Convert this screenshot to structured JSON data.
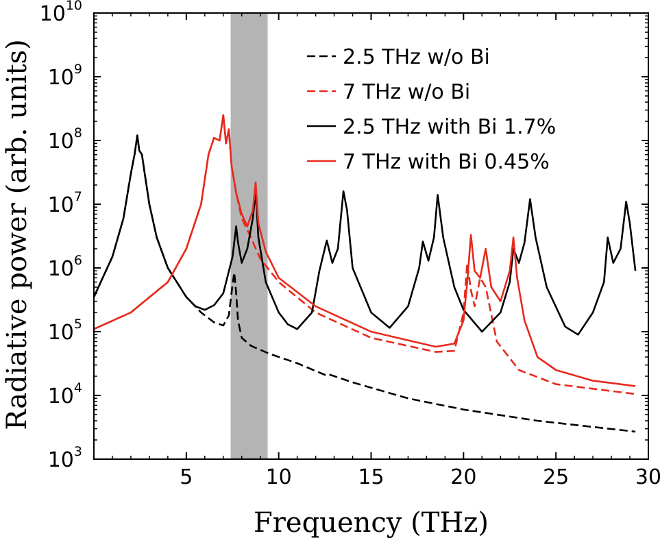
{
  "chart_data": {
    "type": "line",
    "xlabel": "Frequency (THz)",
    "ylabel": "Radiative power (arb. units)",
    "xlim": [
      0,
      30
    ],
    "ylim": [
      1000,
      10000000000
    ],
    "yscale": "log",
    "x_ticks": [
      5,
      10,
      15,
      20,
      25,
      30
    ],
    "y_ticks": [
      {
        "base": "10",
        "exp": "3",
        "value": 1000
      },
      {
        "base": "10",
        "exp": "4",
        "value": 10000
      },
      {
        "base": "10",
        "exp": "5",
        "value": 100000
      },
      {
        "base": "10",
        "exp": "6",
        "value": 1000000
      },
      {
        "base": "10",
        "exp": "7",
        "value": 10000000
      },
      {
        "base": "10",
        "exp": "8",
        "value": 100000000
      },
      {
        "base": "10",
        "exp": "9",
        "value": 1000000000
      },
      {
        "base": "10",
        "exp": "10",
        "value": 10000000000
      }
    ],
    "shaded_region": {
      "x": [
        7.4,
        9.4
      ],
      "color": "#b4b4b4"
    },
    "legend_position": "top-right",
    "colors": {
      "black": "#000000",
      "red": "#e8291c"
    },
    "series": [
      {
        "name": "2.5 THz w/o Bi",
        "color": "#000000",
        "dash": true,
        "x": [
          0,
          1.0,
          1.6,
          2.0,
          2.2,
          2.35,
          2.45,
          2.6,
          2.75,
          3.0,
          3.4,
          4.0,
          5.0,
          5.8,
          6.5,
          7.0,
          7.3,
          7.5,
          7.6,
          7.7,
          7.8,
          8.0,
          8.5,
          9.5,
          11,
          12.5,
          12.6,
          14,
          17,
          20,
          24,
          29.3
        ],
        "values": [
          350000,
          1500000,
          6000000,
          30000000,
          60000000,
          120000000,
          70000000,
          60000000,
          30000000,
          10000000,
          3000000,
          1000000,
          350000,
          200000,
          140000,
          125000,
          180000,
          550000,
          850000,
          400000,
          150000,
          80000,
          60000,
          45000,
          32000,
          21000,
          22000,
          16000,
          9000,
          6000,
          4000,
          2700
        ]
      },
      {
        "name": "7 THz w/o Bi",
        "color": "#e8291c",
        "dash": true,
        "x": [
          0,
          2,
          4,
          5,
          5.8,
          6.2,
          6.5,
          6.8,
          7.0,
          7.15,
          7.3,
          7.45,
          7.7,
          8.0,
          8.5,
          8.7,
          9.0,
          10,
          12,
          15,
          18.5,
          19.5,
          20.0,
          20.2,
          20.4,
          20.6,
          20.9,
          21.2,
          21.8,
          23,
          25,
          29.3
        ],
        "values": [
          110000,
          200000,
          600000,
          2000000,
          10000000,
          60000000,
          110000000,
          100000000,
          250000000,
          90000000,
          150000000,
          40000000,
          15000000,
          6000000,
          3000000,
          2200000,
          1400000,
          600000,
          200000,
          80000,
          48000,
          50000,
          200000,
          1200000,
          450000,
          250000,
          700000,
          500000,
          70000,
          25000,
          15000,
          10500
        ]
      },
      {
        "name": "2.5 THz with Bi 1.7%",
        "color": "#000000",
        "dash": false,
        "x": [
          0,
          1.0,
          1.6,
          2.0,
          2.2,
          2.35,
          2.45,
          2.6,
          2.75,
          3.0,
          3.4,
          4.0,
          5.0,
          5.5,
          6.0,
          6.5,
          7.0,
          7.5,
          7.7,
          7.8,
          8.0,
          8.3,
          8.6,
          8.75,
          8.9,
          9.3,
          10,
          10.5,
          11,
          11.8,
          12.2,
          12.6,
          12.9,
          13.2,
          13.5,
          13.7,
          14,
          15,
          16,
          17,
          17.6,
          17.8,
          18.1,
          18.4,
          18.6,
          18.9,
          19.5,
          20,
          21,
          22,
          22.5,
          22.7,
          23,
          23.3,
          23.6,
          23.9,
          24.5,
          25.5,
          26.2,
          27,
          27.6,
          27.8,
          28.1,
          28.5,
          28.8,
          29.0,
          29.3
        ],
        "values": [
          350000,
          1500000,
          6000000,
          30000000,
          60000000,
          120000000,
          70000000,
          60000000,
          30000000,
          10000000,
          3000000,
          1000000,
          350000,
          250000,
          220000,
          260000,
          400000,
          1500000,
          4500000,
          2500000,
          1200000,
          2000000,
          6000000,
          16000000,
          3000000,
          600000,
          200000,
          130000,
          110000,
          200000,
          900000,
          2700000,
          1200000,
          2000000,
          16000000,
          8000000,
          1000000,
          200000,
          115000,
          250000,
          1000000,
          2600000,
          1300000,
          3000000,
          14000000,
          3000000,
          500000,
          220000,
          100000,
          200000,
          600000,
          2000000,
          1200000,
          2500000,
          12000000,
          3000000,
          500000,
          120000,
          90000,
          200000,
          600000,
          3000000,
          1200000,
          2000000,
          11000000,
          5000000,
          900000
        ]
      },
      {
        "name": "7 THz with Bi 0.45%",
        "color": "#e8291c",
        "dash": false,
        "x": [
          0,
          2,
          4,
          5,
          5.8,
          6.2,
          6.5,
          6.8,
          7.0,
          7.15,
          7.3,
          7.45,
          7.7,
          8.0,
          8.3,
          8.6,
          8.75,
          8.9,
          9.3,
          10,
          12,
          15,
          18.5,
          19.5,
          20.0,
          20.2,
          20.4,
          20.6,
          20.9,
          21.2,
          21.5,
          22.0,
          22.5,
          22.7,
          22.9,
          23.3,
          24,
          25,
          27,
          29.3
        ],
        "values": [
          110000,
          200000,
          600000,
          2000000,
          10000000,
          60000000,
          110000000,
          100000000,
          250000000,
          90000000,
          150000000,
          40000000,
          15000000,
          7000000,
          4500000,
          8000000,
          22000000,
          5000000,
          1800000,
          700000,
          250000,
          100000,
          58000,
          65000,
          150000,
          600000,
          3300000,
          900000,
          700000,
          2000000,
          500000,
          300000,
          900000,
          3000000,
          700000,
          150000,
          40000,
          25000,
          17000,
          14000
        ]
      }
    ]
  }
}
